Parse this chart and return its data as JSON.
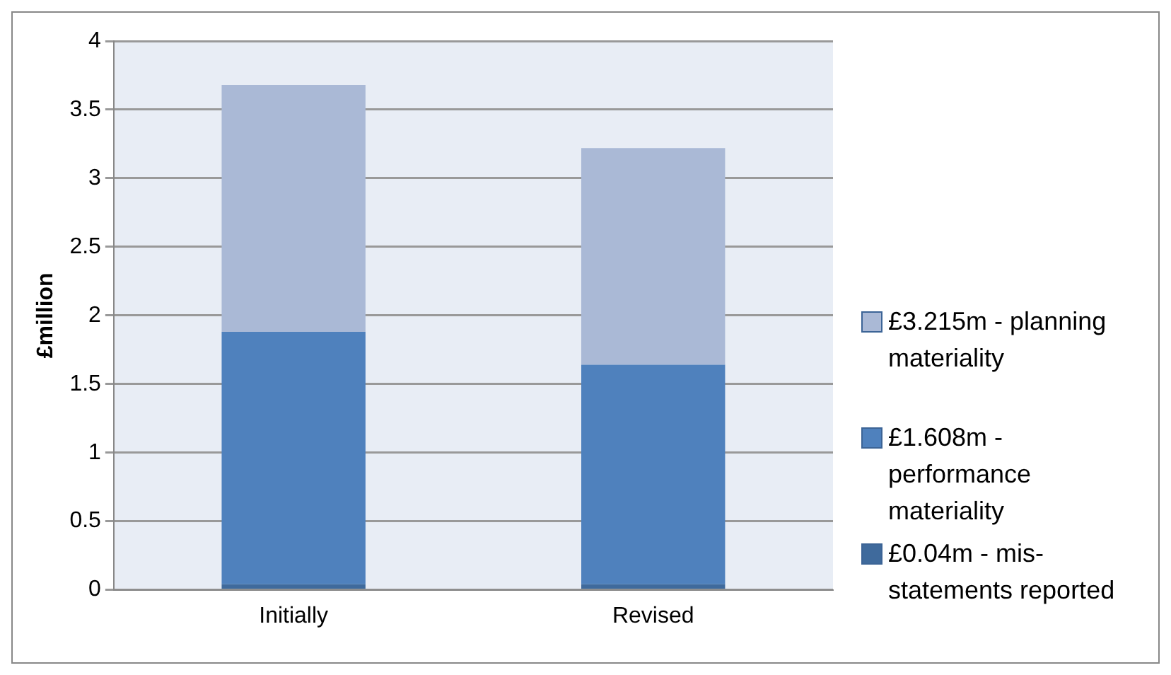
{
  "chart_data": {
    "type": "bar",
    "ylabel": "£million",
    "categories": [
      "Initially",
      "Revised"
    ],
    "stacked": true,
    "series": [
      {
        "name": "£0.04m - mis-statements reported",
        "color": "#3f6a9c",
        "values": [
          0.04,
          0.04
        ]
      },
      {
        "name": "£1.608m - performance materiality",
        "color": "#4f81bd",
        "values": [
          1.84,
          1.6
        ]
      },
      {
        "name": "£3.215m - planning materiality",
        "color": "#aab9d6",
        "values": [
          1.8,
          1.58
        ]
      }
    ],
    "ylim": [
      0,
      4
    ],
    "yticks": [
      0,
      0.5,
      1,
      1.5,
      2,
      2.5,
      3,
      3.5,
      4
    ],
    "grid": "y",
    "legend": "right"
  }
}
